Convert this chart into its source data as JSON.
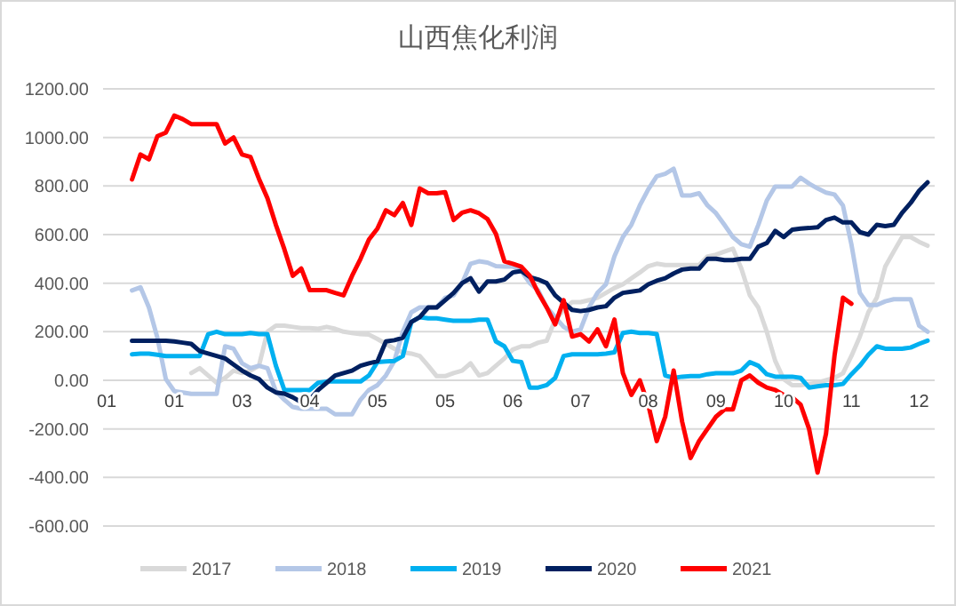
{
  "chart_data": {
    "type": "line",
    "title": "山西焦化利润",
    "categories": [
      "01",
      null,
      null,
      null,
      null,
      null,
      null,
      null,
      "01",
      null,
      null,
      null,
      null,
      null,
      null,
      null,
      "03",
      null,
      null,
      null,
      null,
      null,
      null,
      null,
      "04",
      null,
      null,
      null,
      null,
      null,
      null,
      null,
      "05",
      null,
      null,
      null,
      null,
      null,
      null,
      null,
      "05",
      null,
      null,
      null,
      null,
      null,
      null,
      null,
      "06",
      null,
      null,
      null,
      null,
      null,
      null,
      null,
      "07",
      null,
      null,
      null,
      null,
      null,
      null,
      null,
      "08",
      null,
      null,
      null,
      null,
      null,
      null,
      null,
      "09",
      null,
      null,
      null,
      null,
      null,
      null,
      null,
      "10",
      null,
      null,
      null,
      null,
      null,
      null,
      null,
      "11",
      null,
      null,
      null,
      null,
      null,
      null,
      null,
      "12",
      null
    ],
    "ylim": [
      -600,
      1200
    ],
    "yticks": [
      {
        "value": -600,
        "label": "-600.00"
      },
      {
        "value": -400,
        "label": "-400.00"
      },
      {
        "value": -200,
        "label": "-200.00"
      },
      {
        "value": 0,
        "label": "0.00"
      },
      {
        "value": 200,
        "label": "200.00"
      },
      {
        "value": 400,
        "label": "400.00"
      },
      {
        "value": 600,
        "label": "600.00"
      },
      {
        "value": 800,
        "label": "800.00"
      },
      {
        "value": 1000,
        "label": "1000.00"
      },
      {
        "value": 1200,
        "label": "1200.00"
      }
    ],
    "grid": "y",
    "legend": "bottom",
    "marker": "none",
    "line_style": "solid",
    "series": [
      {
        "name": "2017",
        "color": "#d9d9d9",
        "values": [
          null,
          null,
          null,
          null,
          null,
          null,
          null,
          null,
          null,
          null,
          30,
          50,
          20,
          -10,
          10,
          40,
          30,
          40,
          60,
          200,
          225,
          225,
          220,
          215,
          215,
          212,
          220,
          212,
          200,
          195,
          190,
          188,
          170,
          150,
          130,
          115,
          110,
          100,
          60,
          17,
          17,
          30,
          40,
          70,
          20,
          30,
          60,
          90,
          127,
          140,
          140,
          155,
          163,
          250,
          290,
          322,
          322,
          330,
          340,
          360,
          380,
          395,
          420,
          444,
          470,
          480,
          475,
          475,
          475,
          475,
          475,
          510,
          517,
          530,
          542,
          460,
          350,
          300,
          200,
          80,
          5,
          -20,
          -20,
          -15,
          -10,
          0,
          10,
          29,
          100,
          180,
          280,
          340,
          468,
          530,
          590,
          590,
          570,
          554
        ]
      },
      {
        "name": "2018",
        "color": "#b4c7e7",
        "values": [
          null,
          null,
          null,
          370,
          383,
          300,
          175,
          5,
          -45,
          -50,
          -56,
          -56,
          -56,
          -56,
          140,
          130,
          70,
          50,
          60,
          50,
          -45,
          -80,
          -110,
          -117,
          -117,
          -117,
          -117,
          -140,
          -140,
          -140,
          -80,
          -40,
          -20,
          20,
          80,
          200,
          280,
          300,
          300,
          300,
          340,
          350,
          400,
          480,
          490,
          485,
          470,
          468,
          468,
          450,
          400,
          370,
          300,
          260,
          220,
          200,
          210,
          300,
          360,
          395,
          510,
          590,
          640,
          720,
          786,
          840,
          850,
          871,
          761,
          761,
          770,
          720,
          688,
          640,
          590,
          560,
          550,
          640,
          740,
          798,
          798,
          798,
          834,
          810,
          790,
          773,
          765,
          720,
          560,
          360,
          310,
          310,
          325,
          334,
          334,
          334,
          225,
          200
        ]
      },
      {
        "name": "2019",
        "color": "#00b0f0",
        "values": [
          null,
          null,
          null,
          107,
          110,
          110,
          105,
          100,
          100,
          100,
          100,
          100,
          190,
          200,
          190,
          190,
          190,
          195,
          190,
          190,
          60,
          -40,
          -40,
          -40,
          -40,
          -10,
          -5,
          -5,
          -5,
          -5,
          -5,
          20,
          75,
          78,
          80,
          100,
          240,
          260,
          255,
          255,
          250,
          245,
          245,
          245,
          250,
          250,
          160,
          140,
          80,
          75,
          -30,
          -30,
          -20,
          10,
          100,
          107,
          107,
          107,
          107,
          110,
          115,
          195,
          200,
          195,
          195,
          190,
          20,
          10,
          15,
          17,
          17,
          25,
          29,
          29,
          29,
          40,
          75,
          60,
          25,
          15,
          15,
          15,
          10,
          -30,
          -25,
          -20,
          -20,
          -15,
          25,
          60,
          105,
          140,
          130,
          130,
          130,
          135,
          150,
          163
        ]
      },
      {
        "name": "2020",
        "color": "#002060",
        "values": [
          null,
          null,
          null,
          163,
          163,
          163,
          163,
          163,
          160,
          155,
          150,
          120,
          110,
          100,
          90,
          65,
          40,
          20,
          5,
          -30,
          -50,
          -55,
          -70,
          -90,
          -80,
          -40,
          -10,
          20,
          30,
          40,
          60,
          70,
          78,
          160,
          165,
          175,
          240,
          260,
          300,
          300,
          330,
          360,
          400,
          420,
          365,
          407,
          407,
          415,
          444,
          450,
          425,
          415,
          400,
          350,
          320,
          290,
          285,
          290,
          300,
          305,
          340,
          360,
          365,
          370,
          395,
          410,
          420,
          440,
          456,
          460,
          460,
          500,
          500,
          495,
          495,
          500,
          500,
          550,
          565,
          615,
          590,
          620,
          625,
          627,
          630,
          660,
          670,
          650,
          650,
          610,
          600,
          640,
          635,
          640,
          690,
          730,
          780,
          815
        ]
      },
      {
        "name": "2021",
        "color": "#ff0000",
        "values": [
          null,
          null,
          null,
          827,
          930,
          910,
          1005,
          1020,
          1090,
          1075,
          1055,
          1055,
          1055,
          1055,
          975,
          1000,
          930,
          920,
          830,
          750,
          640,
          540,
          430,
          460,
          371,
          371,
          371,
          360,
          350,
          430,
          500,
          580,
          625,
          700,
          680,
          730,
          640,
          790,
          770,
          770,
          775,
          660,
          690,
          700,
          688,
          664,
          603,
          490,
          480,
          468,
          430,
          360,
          300,
          230,
          330,
          180,
          190,
          160,
          210,
          140,
          250,
          30,
          -60,
          0,
          -100,
          -250,
          -150,
          40,
          -170,
          -320,
          -250,
          -200,
          -150,
          -120,
          -120,
          0,
          20,
          -10,
          -30,
          -40,
          -60,
          -70,
          -100,
          -200,
          -380,
          -220,
          100,
          340,
          315,
          null,
          null,
          null,
          null,
          null,
          null,
          null,
          null,
          null
        ]
      }
    ]
  }
}
